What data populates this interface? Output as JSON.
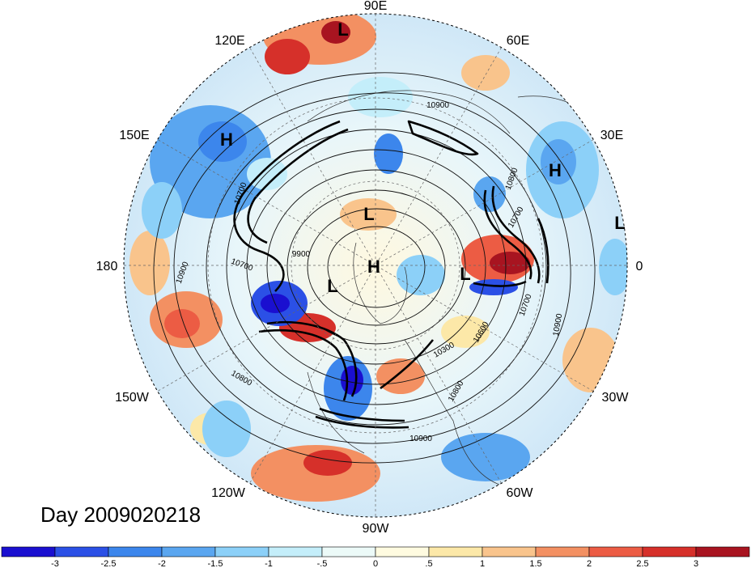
{
  "map": {
    "projection": "polar-stereographic-north",
    "longitude_labels": [
      "90E",
      "60E",
      "30E",
      "0",
      "30W",
      "60W",
      "90W",
      "120W",
      "150W",
      "180",
      "150E",
      "120E"
    ],
    "pressure_systems": [
      {
        "type": "L",
        "label": "L"
      },
      {
        "type": "H",
        "label": "H"
      },
      {
        "type": "H",
        "label": "H"
      },
      {
        "type": "L",
        "label": "L"
      },
      {
        "type": "L",
        "label": "L"
      },
      {
        "type": "H",
        "label": "H"
      },
      {
        "type": "L",
        "label": "L"
      },
      {
        "type": "L",
        "label": "L"
      }
    ],
    "contour_labels": [
      "10900",
      "10800",
      "10700",
      "10700",
      "9900",
      "10700",
      "10900",
      "10700",
      "10600",
      "10300",
      "10800",
      "10800",
      "10900",
      "10900"
    ],
    "date_label": "Day 2009020218"
  },
  "colorbar": {
    "colors": [
      "#1a0fd0",
      "#2b50e6",
      "#3c86ec",
      "#5aa6f0",
      "#8cd0f8",
      "#c4eefa",
      "#ecfaf8",
      "#fffbe0",
      "#fce8a8",
      "#f9c48c",
      "#f39062",
      "#ec5c44",
      "#d6302a",
      "#a81420"
    ],
    "tick_labels": [
      "-3",
      "-2.5",
      "-2",
      "-1.5",
      "-1",
      "-.5",
      "0",
      ".5",
      "1",
      "1.5",
      "2",
      "2.5",
      "3"
    ]
  },
  "theme": {
    "cold": "#2b50e6",
    "warm": "#ec5c44",
    "neutral": "#fffbe0"
  }
}
